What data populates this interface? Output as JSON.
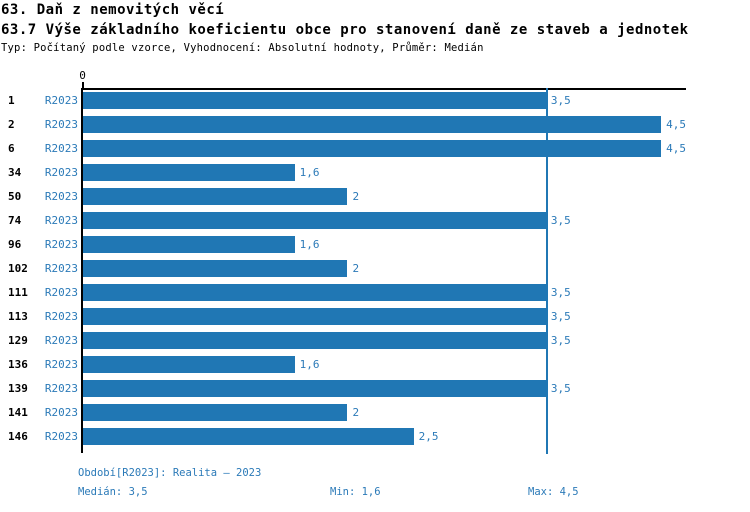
{
  "header": {
    "title": "63. Daň z nemovitých věcí",
    "subtitle": "63.7 Výše základního koeficientu obce pro stanovení daně ze staveb a jednotek",
    "meta": "Typ: Počítaný podle vzorce, Vyhodnocení: Absolutní hodnoty, Průměr: Medián"
  },
  "chart_data": {
    "type": "bar",
    "orientation": "horizontal",
    "title": "63.7 Výše základního koeficientu obce pro stanovení daně ze staveb a jednotek",
    "categories": [
      "1",
      "2",
      "6",
      "34",
      "50",
      "74",
      "96",
      "102",
      "111",
      "113",
      "129",
      "136",
      "139",
      "141",
      "146"
    ],
    "series": [
      {
        "name": "R2023",
        "values": [
          3.5,
          4.5,
          4.5,
          1.6,
          2,
          3.5,
          1.6,
          2,
          3.5,
          3.5,
          3.5,
          1.6,
          3.5,
          2,
          2.5
        ],
        "value_labels": [
          "3,5",
          "4,5",
          "4,5",
          "1,6",
          "2",
          "3,5",
          "1,6",
          "2",
          "3,5",
          "3,5",
          "3,5",
          "1,6",
          "3,5",
          "2",
          "2,5"
        ]
      }
    ],
    "period_label": "R2023",
    "xlabel": "",
    "ylabel": "",
    "xlim": [
      0,
      4.56
    ],
    "x_tick_labels": [
      "0"
    ],
    "zero_tick_label": "0",
    "median_reference_line": 3.5,
    "grid": false,
    "legend_position": "none",
    "bar_color": "#2077b4",
    "median_line_color": "#2077b4",
    "label_color": "#2b7ab8"
  },
  "footer": {
    "period_info": "Období[R2023]: Realita – 2023",
    "median": "Medián: 3,5",
    "min": "Min: 1,6",
    "max": "Max: 4,5"
  },
  "colors": {
    "accent": "#2077b4",
    "text_blue": "#2b7ab8",
    "axis_black": "#000000",
    "background": "#ffffff"
  }
}
